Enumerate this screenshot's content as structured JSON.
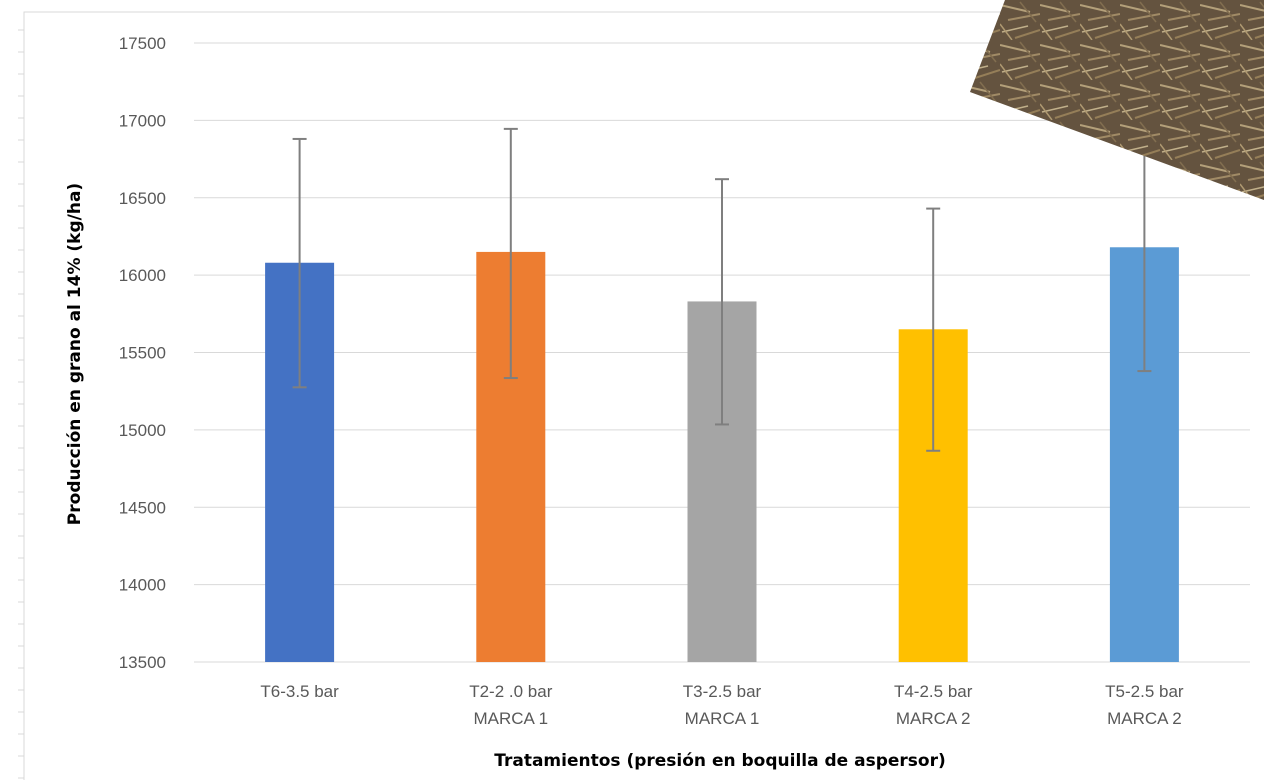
{
  "chart_data": {
    "type": "bar",
    "title": "",
    "xlabel": "Tratamientos (presión en boquilla de aspersor)",
    "ylabel": "Producción en grano al 14% (kg/ha)",
    "ylim": [
      13500,
      17500
    ],
    "yticks": [
      13500,
      14000,
      14500,
      15000,
      15500,
      16000,
      16500,
      17000,
      17500
    ],
    "grid": true,
    "categories": [
      [
        "T6-3.5 bar"
      ],
      [
        "T2-2 .0 bar",
        "MARCA 1"
      ],
      [
        "T3-2.5 bar",
        "MARCA 1"
      ],
      [
        "T4-2.5 bar",
        "MARCA 2"
      ],
      [
        "T5-2.5 bar",
        "MARCA 2"
      ]
    ],
    "values": [
      16080,
      16150,
      15830,
      15650,
      16180
    ],
    "error_low": [
      15275,
      15335,
      15035,
      14865,
      15380
    ],
    "error_high": [
      16880,
      16945,
      16620,
      16430,
      16990
    ],
    "colors": [
      "#4472C4",
      "#ED7D31",
      "#A5A5A5",
      "#FFC000",
      "#5B9BD5"
    ]
  },
  "decor": {
    "photo_overlay": "straw-mulch-photo"
  }
}
